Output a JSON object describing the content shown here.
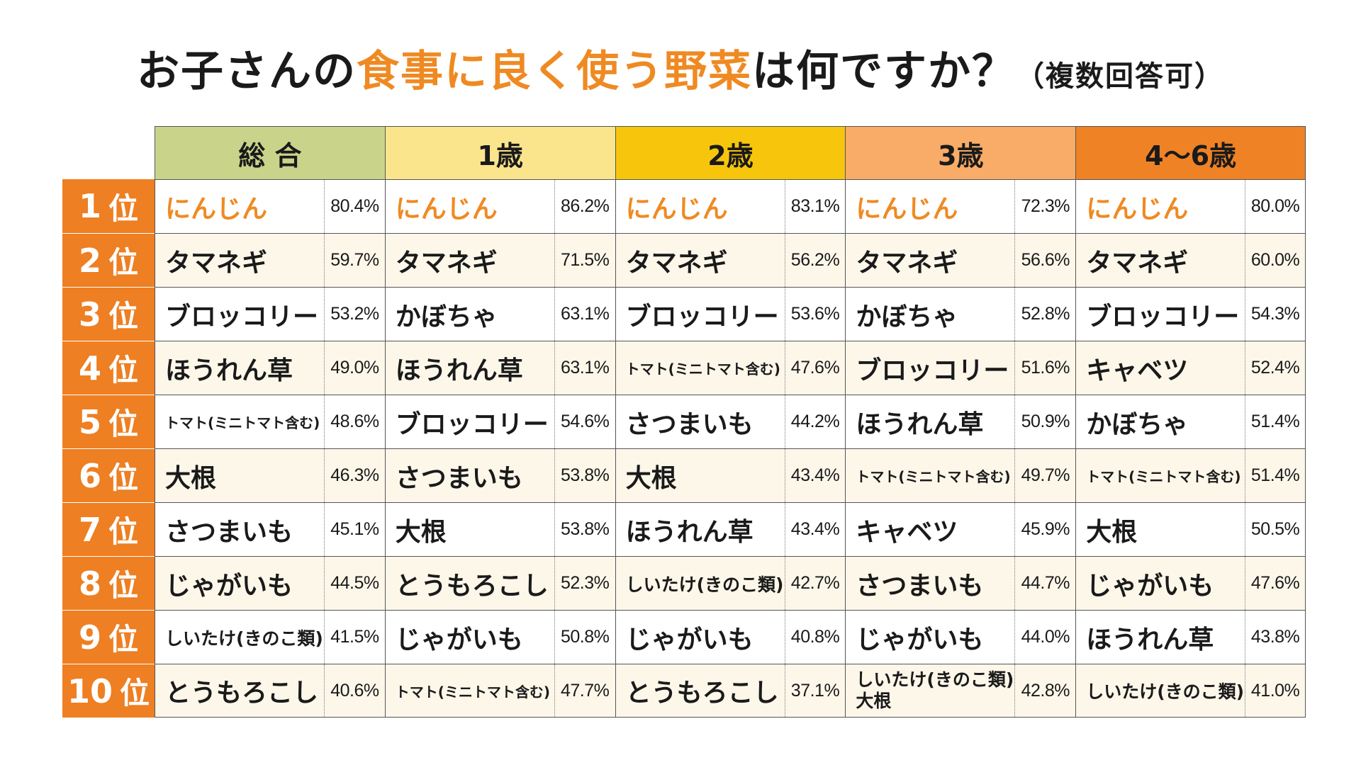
{
  "title": {
    "part1": "お子さんの",
    "accent": "食事に良く使う野菜",
    "part2": "は何ですか？",
    "paren": "（複数回答可）"
  },
  "colors": {
    "accent": "#ef8a22",
    "rank_bg": "#ee7f22",
    "row_alt": "#fdf7ea"
  },
  "chart_data": {
    "type": "table",
    "rank_suffix": "位",
    "groups": [
      {
        "label": "総 合",
        "color": "#c9d48a"
      },
      {
        "label": "1歳",
        "color": "#fbe58c"
      },
      {
        "label": "2歳",
        "color": "#f7c60c"
      },
      {
        "label": "3歳",
        "color": "#f8ac68"
      },
      {
        "label": "4～6歳",
        "color": "#f08226"
      }
    ],
    "rows": [
      {
        "rank": "1",
        "items": [
          {
            "veg": "にんじん",
            "pct": "80.4%"
          },
          {
            "veg": "にんじん",
            "pct": "86.2%"
          },
          {
            "veg": "にんじん",
            "pct": "83.1%"
          },
          {
            "veg": "にんじん",
            "pct": "72.3%"
          },
          {
            "veg": "にんじん",
            "pct": "80.0%"
          }
        ]
      },
      {
        "rank": "2",
        "items": [
          {
            "veg": "タマネギ",
            "pct": "59.7%"
          },
          {
            "veg": "タマネギ",
            "pct": "71.5%"
          },
          {
            "veg": "タマネギ",
            "pct": "56.2%"
          },
          {
            "veg": "タマネギ",
            "pct": "56.6%"
          },
          {
            "veg": "タマネギ",
            "pct": "60.0%"
          }
        ]
      },
      {
        "rank": "3",
        "items": [
          {
            "veg": "ブロッコリー",
            "pct": "53.2%"
          },
          {
            "veg": "かぼちゃ",
            "pct": "63.1%"
          },
          {
            "veg": "ブロッコリー",
            "pct": "53.6%"
          },
          {
            "veg": "かぼちゃ",
            "pct": "52.8%"
          },
          {
            "veg": "ブロッコリー",
            "pct": "54.3%"
          }
        ]
      },
      {
        "rank": "4",
        "items": [
          {
            "veg": "ほうれん草",
            "pct": "49.0%"
          },
          {
            "veg": "ほうれん草",
            "pct": "63.1%"
          },
          {
            "veg": "トマト(ミニトマト含む)",
            "pct": "47.6%"
          },
          {
            "veg": "ブロッコリー",
            "pct": "51.6%"
          },
          {
            "veg": "キャベツ",
            "pct": "52.4%"
          }
        ]
      },
      {
        "rank": "5",
        "items": [
          {
            "veg": "トマト(ミニトマト含む)",
            "pct": "48.6%"
          },
          {
            "veg": "ブロッコリー",
            "pct": "54.6%"
          },
          {
            "veg": "さつまいも",
            "pct": "44.2%"
          },
          {
            "veg": "ほうれん草",
            "pct": "50.9%"
          },
          {
            "veg": "かぼちゃ",
            "pct": "51.4%"
          }
        ]
      },
      {
        "rank": "6",
        "items": [
          {
            "veg": "大根",
            "pct": "46.3%"
          },
          {
            "veg": "さつまいも",
            "pct": "53.8%"
          },
          {
            "veg": "大根",
            "pct": "43.4%"
          },
          {
            "veg": "トマト(ミニトマト含む)",
            "pct": "49.7%"
          },
          {
            "veg": "トマト(ミニトマト含む)",
            "pct": "51.4%"
          }
        ]
      },
      {
        "rank": "7",
        "items": [
          {
            "veg": "さつまいも",
            "pct": "45.1%"
          },
          {
            "veg": "大根",
            "pct": "53.8%"
          },
          {
            "veg": "ほうれん草",
            "pct": "43.4%"
          },
          {
            "veg": "キャベツ",
            "pct": "45.9%"
          },
          {
            "veg": "大根",
            "pct": "50.5%"
          }
        ]
      },
      {
        "rank": "8",
        "items": [
          {
            "veg": "じゃがいも",
            "pct": "44.5%"
          },
          {
            "veg": "とうもろこし",
            "pct": "52.3%"
          },
          {
            "veg": "しいたけ(きのこ類)",
            "pct": "42.7%"
          },
          {
            "veg": "さつまいも",
            "pct": "44.7%"
          },
          {
            "veg": "じゃがいも",
            "pct": "47.6%"
          }
        ]
      },
      {
        "rank": "9",
        "items": [
          {
            "veg": "しいたけ(きのこ類)",
            "pct": "41.5%"
          },
          {
            "veg": "じゃがいも",
            "pct": "50.8%"
          },
          {
            "veg": "じゃがいも",
            "pct": "40.8%"
          },
          {
            "veg": "じゃがいも",
            "pct": "44.0%"
          },
          {
            "veg": "ほうれん草",
            "pct": "43.8%"
          }
        ]
      },
      {
        "rank": "10",
        "items": [
          {
            "veg": "とうもろこし",
            "pct": "40.6%"
          },
          {
            "veg": "トマト(ミニトマト含む)",
            "pct": "47.7%"
          },
          {
            "veg": "とうもろこし",
            "pct": "37.1%"
          },
          {
            "veg": "しいたけ(きのこ類)",
            "veg2": "大根",
            "pct": "42.8%"
          },
          {
            "veg": "しいたけ(きのこ類)",
            "pct": "41.0%"
          }
        ]
      }
    ]
  }
}
